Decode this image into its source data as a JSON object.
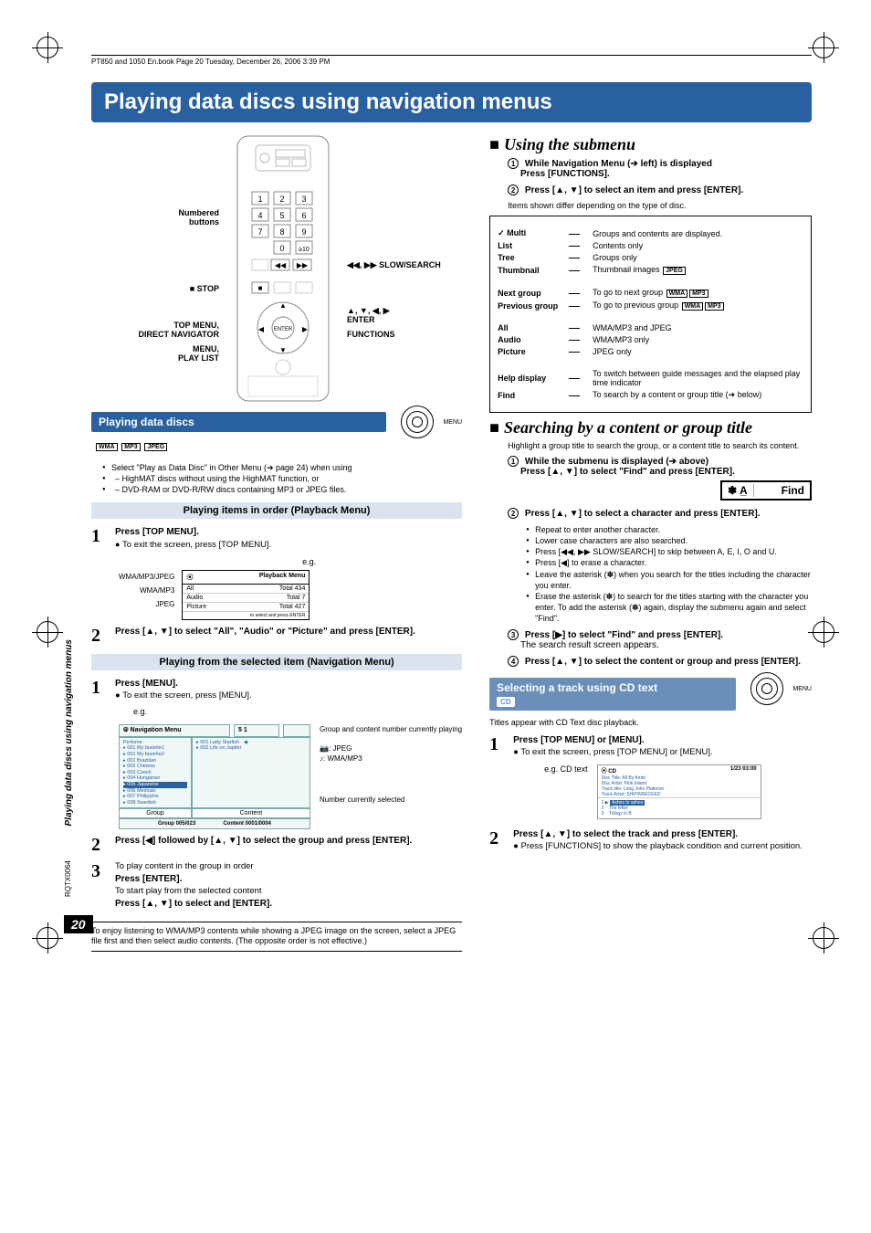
{
  "header_text": "PT850 and 1050 En.book  Page 20  Tuesday, December 26, 2006  3:39 PM",
  "page_title": "Playing data discs using navigation menus",
  "sidebar_vertical": "Playing data discs using navigation menus",
  "model_code": "RQTX0064",
  "page_number": "20",
  "remote": {
    "labels": {
      "numbered": "Numbered\nbuttons",
      "stop": "■ STOP",
      "topmenu": "TOP MENU,\nDIRECT NAVIGATOR",
      "menu": "MENU,\nPLAY LIST",
      "slow": "◀◀, ▶▶ SLOW/SEARCH",
      "enter": "▲, ▼, ◀, ▶\nENTER",
      "functions": "FUNCTIONS"
    }
  },
  "left": {
    "section_title": "Playing data discs",
    "pills": [
      "WMA",
      "MP3",
      "JPEG"
    ],
    "intro_bullets": [
      "Select \"Play as Data Disc\" in Other Menu (➔ page 24) when using",
      "– HighMAT discs without using the HighMAT function, or",
      "– DVD-RAM or DVD-R/RW discs containing MP3 or JPEG files."
    ],
    "sub1": "Playing items in order (Playback Menu)",
    "step1_head": "Press [TOP MENU].",
    "step1_sub": "To exit the screen, press [TOP MENU].",
    "eg": "e.g.",
    "osd1": {
      "title": "Playback Menu",
      "rows": [
        [
          "All",
          "Total 434"
        ],
        [
          "Audio",
          "Total 7"
        ],
        [
          "Picture",
          "Total 427"
        ]
      ],
      "foot": "to select and press ENTER",
      "labels": [
        "WMA/MP3/JPEG",
        "WMA/MP3",
        "JPEG"
      ]
    },
    "step2": "Press [▲, ▼] to select \"All\", \"Audio\" or \"Picture\" and press [ENTER].",
    "sub2": "Playing from the selected item (Navigation Menu)",
    "step_nav1_head": "Press [MENU].",
    "step_nav1_sub": "To exit the screen, press [MENU].",
    "nav": {
      "title": "Navigation Menu",
      "group_items": [
        "Perfume",
        "001 My favorite1",
        "001 My favorite2",
        "001 Brazilian",
        "002 Chinese",
        "003 Czech",
        "004 Hungarian",
        "005 Japanese",
        "006 Mexican",
        "007 Philippine",
        "008 Swedish"
      ],
      "content_items": [
        "001 Lady Starfish",
        "002 Life on Jupiter"
      ],
      "group_caption": "Group",
      "content_caption": "Content",
      "bottom_left": "Group  005/023",
      "bottom_right": "Content  0001/0004",
      "side_labels": {
        "a": "Group and content number currently playing",
        "b": ": JPEG",
        "c": ": WMA/MP3",
        "d": "Number currently selected"
      },
      "counter": "5   1"
    },
    "step_nav2": "Press [◀] followed by [▲, ▼] to select the group and press [ENTER].",
    "step_nav3_a": "To play content in the group in order",
    "step_nav3_b": "Press [ENTER].",
    "step_nav3_c": "To start play from the selected content",
    "step_nav3_d": "Press [▲, ▼] to select and [ENTER].",
    "tip": "To enjoy listening to WMA/MP3 contents while showing a JPEG image on the screen, select a JPEG file first and then select audio contents. (The opposite order is not effective.)"
  },
  "right": {
    "h_submenu": "Using the submenu",
    "sm_step1": "While Navigation Menu (➔ left) is displayed",
    "sm_step1b": "Press [FUNCTIONS].",
    "sm_step2": "Press [▲, ▼] to select an item and press [ENTER].",
    "sm_note": "Items shown differ depending on the type of disc.",
    "submenu_rows": [
      {
        "label": "✓ Multi",
        "desc": "Groups and contents are displayed."
      },
      {
        "label": "List",
        "desc": "Contents only"
      },
      {
        "label": "Tree",
        "desc": "Groups only"
      },
      {
        "label": "Thumbnail",
        "desc_prefix": "Thumbnail images ",
        "boxes": [
          "JPEG"
        ]
      },
      {
        "label": "Next group",
        "desc_prefix": "To go to next group ",
        "boxes": [
          "WMA",
          "MP3"
        ]
      },
      {
        "label": "Previous group",
        "desc_prefix": "To go to previous group ",
        "boxes": [
          "WMA",
          "MP3"
        ]
      },
      {
        "label": "All",
        "desc": "WMA/MP3 and JPEG"
      },
      {
        "label": "Audio",
        "desc": "WMA/MP3 only"
      },
      {
        "label": "Picture",
        "desc": "JPEG only"
      },
      {
        "label": "Help display",
        "desc": "To switch between guide messages and the elapsed play time indicator"
      },
      {
        "label": "Find",
        "desc": "To search by a content or group title (➔ below)"
      }
    ],
    "h_search": "Searching by a content or group title",
    "search_intro": "Highlight a group title to search the group, or a content title to search its content.",
    "search_s1a": "While the submenu is displayed (➔ above)",
    "search_s1b": "Press [▲, ▼] to select \"Find\" and press [ENTER].",
    "find_left": "✽ A̲",
    "find_right": "Find",
    "search_s2": "Press [▲, ▼] to select a character and press [ENTER].",
    "search_bullets": [
      "Repeat to enter another character.",
      "Lower case characters are also searched.",
      "Press [◀◀, ▶▶ SLOW/SEARCH] to skip between A, E, I, O and U.",
      "Press [◀] to erase a character.",
      "Leave the asterisk (✽) when you search for the titles including the character you enter.",
      "Erase the asterisk (✽) to search for the titles starting with the character you enter. To add the asterisk (✽) again, display the submenu again and select \"Find\"."
    ],
    "search_s3a": "Press [▶] to select \"Find\" and press [ENTER].",
    "search_s3b": "The search result screen appears.",
    "search_s4": "Press [▲, ▼] to select the content or group and press [ENTER].",
    "selecting_title": "Selecting a track using CD text",
    "selecting_pill": "CD",
    "titles_note": "Titles appear with CD Text disc playback.",
    "cd_s1a": "Press [TOP MENU] or [MENU].",
    "cd_s1b": "To exit the screen, press [TOP MENU] or [MENU].",
    "cd_eg": "e.g. CD text",
    "cd_osd": {
      "head_left": "CD",
      "head_right": "1/23  03:00",
      "meta": [
        "Disc Title:    All By Artist",
        "Disc Artist:   Pink Island",
        "Track title:   Long John Platinum",
        "Track Artist:  SHIPWRECKED"
      ],
      "tracks": [
        [
          "1",
          "▶",
          "Ashes to ashes",
          true
        ],
        [
          "2",
          "",
          "The letter",
          false
        ],
        [
          "3",
          "",
          "Trilogy in B",
          false
        ]
      ]
    },
    "cd_s2a": "Press [▲, ▼] to select the track and press [ENTER].",
    "cd_s2b": "Press [FUNCTIONS] to show the playback condition and current position.",
    "dial_label": "MENU"
  },
  "colors": {
    "banner": "#2860a0",
    "subhead": "#dbe4ee",
    "selecting": "#6a8fb8",
    "nav_osd_border": "#7aa0a0"
  }
}
